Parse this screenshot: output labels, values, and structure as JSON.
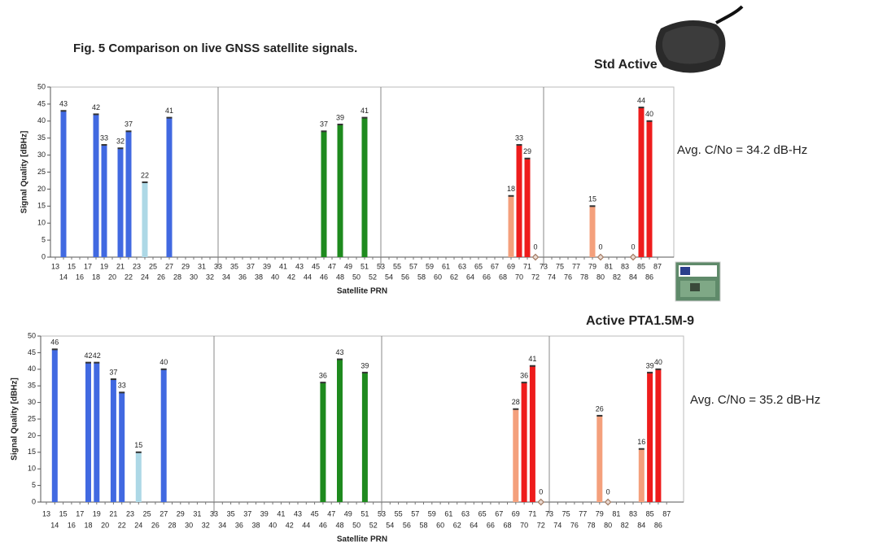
{
  "caption": "Fig. 5 Comparison on live GNSS satellite signals.",
  "chart_data": [
    {
      "type": "bar",
      "antenna": "Std Active",
      "annotation": "Avg. C/No = 34.2 dB-Hz",
      "xlabel": "Satellite PRN",
      "ylabel": "Signal Quality [dBHz]",
      "categories": [
        13,
        14,
        15,
        16,
        17,
        18,
        19,
        20,
        21,
        22,
        23,
        24,
        25,
        26,
        27,
        28,
        29,
        30,
        31,
        32,
        33,
        34,
        35,
        36,
        37,
        38,
        39,
        40,
        41,
        42,
        43,
        44,
        45,
        46,
        47,
        48,
        49,
        50,
        51,
        52,
        53,
        54,
        55,
        56,
        57,
        58,
        59,
        60,
        61,
        62,
        63,
        64,
        65,
        66,
        67,
        68,
        69,
        70,
        71,
        72,
        73,
        74,
        75,
        76,
        77,
        78,
        79,
        80,
        81,
        82,
        83,
        84,
        85,
        86,
        87
      ],
      "values": [
        null,
        43,
        null,
        null,
        null,
        42,
        33,
        null,
        32,
        37,
        null,
        22,
        null,
        null,
        41,
        null,
        null,
        null,
        null,
        null,
        null,
        null,
        null,
        null,
        null,
        null,
        null,
        null,
        null,
        null,
        null,
        null,
        null,
        37,
        null,
        39,
        null,
        null,
        41,
        null,
        null,
        null,
        null,
        null,
        null,
        null,
        null,
        null,
        null,
        null,
        null,
        null,
        null,
        null,
        null,
        null,
        18,
        33,
        29,
        0,
        null,
        null,
        null,
        null,
        null,
        null,
        15,
        0,
        null,
        null,
        null,
        0,
        44,
        40,
        null
      ],
      "colors": [
        null,
        "#4169e1",
        null,
        null,
        null,
        "#4169e1",
        "#4169e1",
        null,
        "#4169e1",
        "#4169e1",
        null,
        "#add8e6",
        null,
        null,
        "#4169e1",
        null,
        null,
        null,
        null,
        null,
        null,
        null,
        null,
        null,
        null,
        null,
        null,
        null,
        null,
        null,
        null,
        null,
        null,
        "#1e8a1e",
        null,
        "#1e8a1e",
        null,
        null,
        "#1e8a1e",
        null,
        null,
        null,
        null,
        null,
        null,
        null,
        null,
        null,
        null,
        null,
        null,
        null,
        null,
        null,
        null,
        null,
        "#f4a07c",
        "#ee1c1c",
        "#ee1c1c",
        "#a07860",
        null,
        null,
        null,
        null,
        null,
        null,
        "#f4a07c",
        "#a07860",
        null,
        null,
        null,
        "#a07860",
        "#ee1c1c",
        "#ee1c1c",
        null
      ],
      "ylim": [
        0,
        50
      ],
      "yticks": [
        0,
        5,
        10,
        15,
        20,
        25,
        30,
        35,
        40,
        45,
        50
      ],
      "xgrid": [
        33,
        53,
        73
      ]
    },
    {
      "type": "bar",
      "antenna": "Active PTA1.5M-9",
      "annotation": "Avg. C/No = 35.2 dB-Hz",
      "xlabel": "Satellite PRN",
      "ylabel": "Signal Quality [dBHz]",
      "categories": [
        13,
        14,
        15,
        16,
        17,
        18,
        19,
        20,
        21,
        22,
        23,
        24,
        25,
        26,
        27,
        28,
        29,
        30,
        31,
        32,
        33,
        34,
        35,
        36,
        37,
        38,
        39,
        40,
        41,
        42,
        43,
        44,
        45,
        46,
        47,
        48,
        49,
        50,
        51,
        52,
        53,
        54,
        55,
        56,
        57,
        58,
        59,
        60,
        61,
        62,
        63,
        64,
        65,
        66,
        67,
        68,
        69,
        70,
        71,
        72,
        73,
        74,
        75,
        76,
        77,
        78,
        79,
        80,
        81,
        82,
        83,
        84,
        85,
        86,
        87
      ],
      "values": [
        null,
        46,
        null,
        null,
        null,
        42,
        42,
        null,
        37,
        33,
        null,
        15,
        null,
        null,
        40,
        null,
        null,
        null,
        null,
        null,
        null,
        null,
        null,
        null,
        null,
        null,
        null,
        null,
        null,
        null,
        null,
        null,
        null,
        36,
        null,
        43,
        null,
        null,
        39,
        null,
        null,
        null,
        null,
        null,
        null,
        null,
        null,
        null,
        null,
        null,
        null,
        null,
        null,
        null,
        null,
        null,
        28,
        36,
        41,
        0,
        null,
        null,
        null,
        null,
        null,
        null,
        26,
        0,
        null,
        null,
        null,
        16,
        39,
        40,
        null
      ],
      "colors": [
        null,
        "#4169e1",
        null,
        null,
        null,
        "#4169e1",
        "#4169e1",
        null,
        "#4169e1",
        "#4169e1",
        null,
        "#add8e6",
        null,
        null,
        "#4169e1",
        null,
        null,
        null,
        null,
        null,
        null,
        null,
        null,
        null,
        null,
        null,
        null,
        null,
        null,
        null,
        null,
        null,
        null,
        "#1e8a1e",
        null,
        "#1e8a1e",
        null,
        null,
        "#1e8a1e",
        null,
        null,
        null,
        null,
        null,
        null,
        null,
        null,
        null,
        null,
        null,
        null,
        null,
        null,
        null,
        null,
        null,
        "#f4a07c",
        "#ee1c1c",
        "#ee1c1c",
        "#a07860",
        null,
        null,
        null,
        null,
        null,
        null,
        "#f4a07c",
        "#a07860",
        null,
        null,
        null,
        "#f4a07c",
        "#ee1c1c",
        "#ee1c1c",
        null
      ],
      "ylim": [
        0,
        50
      ],
      "yticks": [
        0,
        5,
        10,
        15,
        20,
        25,
        30,
        35,
        40,
        45,
        50
      ],
      "xgrid": [
        33,
        53,
        73
      ]
    }
  ]
}
